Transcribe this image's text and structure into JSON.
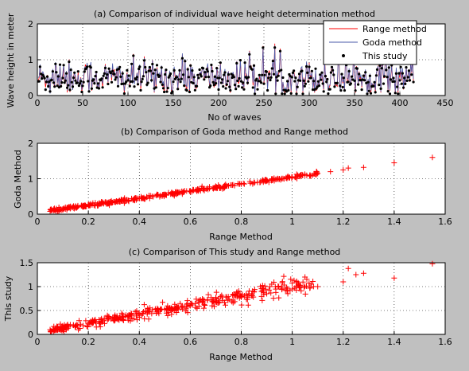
{
  "figure": {
    "background": "#c0c0c0",
    "axes_background": "#ffffff"
  },
  "chart_data": [
    {
      "type": "line",
      "title": "(a) Comparison of individual wave height determination method",
      "xlabel": "No of waves",
      "ylabel": "Wave height in meter",
      "xlim": [
        0,
        450
      ],
      "ylim": [
        0,
        2
      ],
      "xticks": [
        0,
        50,
        100,
        150,
        200,
        250,
        300,
        350,
        400,
        450
      ],
      "yticks": [
        0,
        1,
        2
      ],
      "grid": true,
      "legend_position": "top-right",
      "n_waves": 415,
      "series": [
        {
          "name": "Range method",
          "color": "#ff0000",
          "style": "line",
          "description_values": "per-wave heights, mostly 0.1-1.0 m, peaks up to about 1.55 m"
        },
        {
          "name": "Goda method",
          "color": "#4a5aa8",
          "style": "line",
          "description_values": "per-wave heights tracking Range method closely"
        },
        {
          "name": "This study",
          "color": "#000000",
          "style": "dot",
          "description_values": "per-wave heights, mostly 0.1-1.0 m, peaks up to about 1.5 m"
        }
      ]
    },
    {
      "type": "scatter",
      "title": "(b) Comparison of Goda method and Range method",
      "xlabel": "Range Method",
      "ylabel": "Goda Method",
      "xlim": [
        0,
        1.6
      ],
      "ylim": [
        0,
        2
      ],
      "xticks": [
        0,
        0.2,
        0.4,
        0.6,
        0.8,
        1,
        1.2,
        1.4,
        1.6
      ],
      "yticks": [
        0,
        1,
        2
      ],
      "grid": true,
      "marker": "+",
      "color": "#ff0000",
      "trend": {
        "slope": 1.0,
        "intercept": 0.05
      },
      "points": [
        [
          0.05,
          0.08
        ],
        [
          0.08,
          0.11
        ],
        [
          0.1,
          0.12
        ],
        [
          0.15,
          0.19
        ],
        [
          0.2,
          0.24
        ],
        [
          0.25,
          0.3
        ],
        [
          0.3,
          0.35
        ],
        [
          0.35,
          0.39
        ],
        [
          0.4,
          0.45
        ],
        [
          0.45,
          0.5
        ],
        [
          0.5,
          0.55
        ],
        [
          0.55,
          0.6
        ],
        [
          0.6,
          0.64
        ],
        [
          0.65,
          0.7
        ],
        [
          0.7,
          0.74
        ],
        [
          0.75,
          0.8
        ],
        [
          0.8,
          0.85
        ],
        [
          0.85,
          0.9
        ],
        [
          0.9,
          0.94
        ],
        [
          0.95,
          1.0
        ],
        [
          1.0,
          1.05
        ],
        [
          1.05,
          1.1
        ],
        [
          1.1,
          1.15
        ],
        [
          1.15,
          1.2
        ],
        [
          1.2,
          1.25
        ],
        [
          1.22,
          1.3
        ],
        [
          1.28,
          1.32
        ],
        [
          1.4,
          1.45
        ],
        [
          1.55,
          1.6
        ]
      ],
      "n_points": 415
    },
    {
      "type": "scatter",
      "title": "(c) Comparison of This study and Range method",
      "xlabel": "Range Method",
      "ylabel": "This study",
      "xlim": [
        0,
        1.6
      ],
      "ylim": [
        0,
        1.5
      ],
      "xticks": [
        0,
        0.2,
        0.4,
        0.6,
        0.8,
        1,
        1.2,
        1.4,
        1.6
      ],
      "yticks": [
        0,
        0.5,
        1,
        1.5
      ],
      "grid": true,
      "marker": "+",
      "color": "#ff0000",
      "trend": {
        "slope": 0.95,
        "intercept": 0.04
      },
      "points": [
        [
          0.05,
          0.1
        ],
        [
          0.1,
          0.12
        ],
        [
          0.15,
          0.16
        ],
        [
          0.2,
          0.22
        ],
        [
          0.3,
          0.3
        ],
        [
          0.4,
          0.42
        ],
        [
          0.5,
          0.52
        ],
        [
          0.6,
          0.6
        ],
        [
          0.7,
          0.68
        ],
        [
          0.8,
          0.78
        ],
        [
          0.9,
          0.85
        ],
        [
          1.0,
          0.95
        ],
        [
          1.05,
          1.2
        ],
        [
          1.1,
          1.0
        ],
        [
          1.2,
          1.1
        ],
        [
          1.22,
          1.38
        ],
        [
          1.25,
          1.25
        ],
        [
          1.28,
          1.28
        ],
        [
          1.4,
          1.18
        ],
        [
          1.55,
          1.48
        ]
      ],
      "n_points": 415
    }
  ]
}
